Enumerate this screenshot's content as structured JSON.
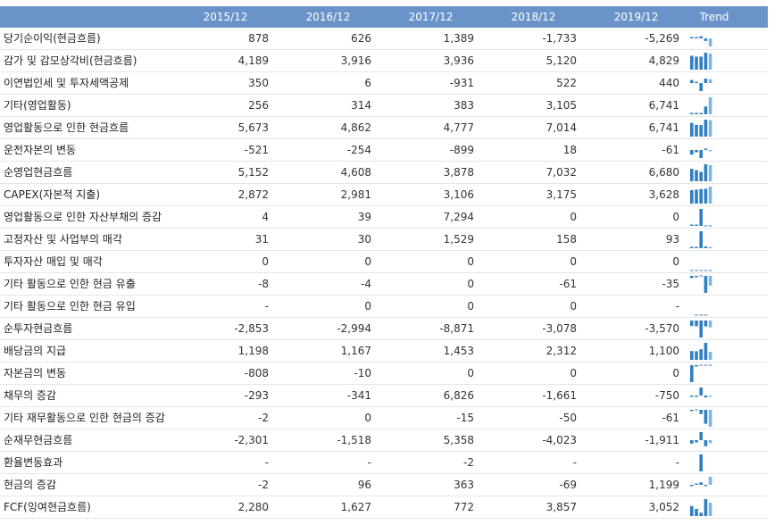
{
  "header": {
    "label_col": "",
    "years": [
      "2015/12",
      "2016/12",
      "2017/12",
      "2018/12",
      "2019/12"
    ],
    "trend_label": "Trend"
  },
  "colors": {
    "header_bg": "#6a94c9",
    "bar_dark": "#2f7fc1",
    "bar_light": "#7fb3e0",
    "row_border": "#e6e6e6"
  },
  "rows": [
    {
      "label": "당기순이익(현금흐름)",
      "values": [
        "878",
        "626",
        "1,389",
        "-1,733",
        "-5,269"
      ]
    },
    {
      "label": "감가 및 감모상각비(현금흐름)",
      "values": [
        "4,189",
        "3,916",
        "3,936",
        "5,120",
        "4,829"
      ]
    },
    {
      "label": "이연법인세 및 투자세액공제",
      "values": [
        "350",
        "6",
        "-931",
        "522",
        "440"
      ]
    },
    {
      "label": "기타(영업활동)",
      "values": [
        "256",
        "314",
        "383",
        "3,105",
        "6,741"
      ]
    },
    {
      "label": "영업활동으로 인한 현금흐름",
      "values": [
        "5,673",
        "4,862",
        "4,777",
        "7,014",
        "6,741"
      ]
    },
    {
      "label": "운전자본의 변동",
      "values": [
        "-521",
        "-254",
        "-899",
        "18",
        "-61"
      ]
    },
    {
      "label": "순영업현금흐름",
      "values": [
        "5,152",
        "4,608",
        "3,878",
        "7,032",
        "6,680"
      ]
    },
    {
      "label": "CAPEX(자본적 지출)",
      "values": [
        "2,872",
        "2,981",
        "3,106",
        "3,175",
        "3,628"
      ]
    },
    {
      "label": "영업활동으로 인한 자산부채의 증감",
      "values": [
        "4",
        "39",
        "7,294",
        "0",
        "0"
      ]
    },
    {
      "label": "고정자산 및 사업부의 매각",
      "values": [
        "31",
        "30",
        "1,529",
        "158",
        "93"
      ]
    },
    {
      "label": "투자자산 매입 및 매각",
      "values": [
        "0",
        "0",
        "0",
        "0",
        "0"
      ]
    },
    {
      "label": "기타 활동으로 인한 현금 유출",
      "values": [
        "-8",
        "-4",
        "0",
        "-61",
        "-35"
      ]
    },
    {
      "label": "기타 활동으로 인한 현금 유입",
      "values": [
        "-",
        "0",
        "0",
        "0",
        "-"
      ]
    },
    {
      "label": "순투자현금흐름",
      "values": [
        "-2,853",
        "-2,994",
        "-8,871",
        "-3,078",
        "-3,570"
      ]
    },
    {
      "label": "배당금의 지급",
      "values": [
        "1,198",
        "1,167",
        "1,453",
        "2,312",
        "1,100"
      ]
    },
    {
      "label": "자본금의 변동",
      "values": [
        "-808",
        "-10",
        "0",
        "0",
        "0"
      ]
    },
    {
      "label": "채무의 증감",
      "values": [
        "-293",
        "-341",
        "6,826",
        "-1,661",
        "-750"
      ]
    },
    {
      "label": "기타 재무활동으로 인한 현금의 증감",
      "values": [
        "-2",
        "0",
        "-15",
        "-50",
        "-61"
      ]
    },
    {
      "label": "순재무현금흐름",
      "values": [
        "-2,301",
        "-1,518",
        "5,358",
        "-4,023",
        "-1,911"
      ]
    },
    {
      "label": "환율변동효과",
      "values": [
        "-",
        "-",
        "-2",
        "-",
        "-"
      ]
    },
    {
      "label": "현금의 증감",
      "values": [
        "-2",
        "96",
        "363",
        "-69",
        "1,199"
      ]
    },
    {
      "label": "FCF(잉여현금흐름)",
      "values": [
        "2,280",
        "1,627",
        "772",
        "3,857",
        "3,052"
      ]
    }
  ]
}
